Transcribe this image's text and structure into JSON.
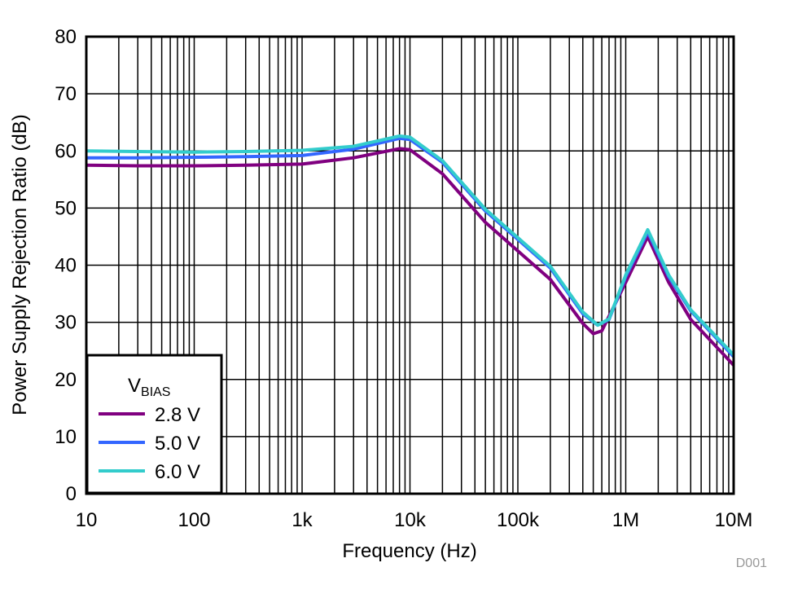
{
  "chart_data": {
    "type": "line",
    "xlabel": "Frequency (Hz)",
    "ylabel": "Power Supply Rejection Ratio (dB)",
    "xscale": "log",
    "xlim": [
      10,
      10000000
    ],
    "ylim": [
      0,
      80
    ],
    "x_ticks": [
      {
        "v": 10,
        "label": "10"
      },
      {
        "v": 100,
        "label": "100"
      },
      {
        "v": 1000,
        "label": "1k"
      },
      {
        "v": 10000,
        "label": "10k"
      },
      {
        "v": 100000,
        "label": "100k"
      },
      {
        "v": 1000000,
        "label": "1M"
      },
      {
        "v": 10000000,
        "label": "10M"
      }
    ],
    "y_ticks": [
      0,
      10,
      20,
      30,
      40,
      50,
      60,
      70,
      80
    ],
    "grid": true,
    "legend": {
      "title_main": "V",
      "title_sub": "BIAS",
      "placement": "bottom-left"
    },
    "watermark": "D001",
    "series": [
      {
        "name": "2.8 V",
        "color": "#800080",
        "x": [
          10,
          30,
          100,
          300,
          1000,
          3000,
          8000,
          10000,
          20000,
          50000,
          100000,
          200000,
          400000,
          500000,
          600000,
          1000000,
          1600000,
          2500000,
          4000000,
          10000000
        ],
        "y": [
          57.5,
          57.4,
          57.4,
          57.5,
          57.7,
          58.8,
          60.4,
          60.2,
          56,
          47.5,
          42.5,
          37.5,
          29.8,
          28,
          28.5,
          37,
          45,
          37,
          30.5,
          22.5
        ]
      },
      {
        "name": "5.0 V",
        "color": "#3366ff",
        "x": [
          10,
          30,
          100,
          300,
          1000,
          3000,
          8000,
          10000,
          20000,
          50000,
          100000,
          200000,
          400000,
          550000,
          700000,
          1000000,
          1600000,
          2500000,
          4000000,
          10000000
        ],
        "y": [
          58.8,
          58.8,
          58.9,
          59,
          59.2,
          60.3,
          62.2,
          62,
          58,
          49.5,
          44.5,
          39.5,
          31.5,
          29.5,
          30.5,
          38,
          45.8,
          38,
          32,
          24
        ]
      },
      {
        "name": "6.0 V",
        "color": "#33cccc",
        "x": [
          10,
          30,
          100,
          300,
          1000,
          3000,
          8000,
          10000,
          20000,
          50000,
          100000,
          200000,
          400000,
          550000,
          700000,
          1000000,
          1600000,
          2500000,
          4000000,
          10000000
        ],
        "y": [
          60,
          59.9,
          59.8,
          59.9,
          60.1,
          60.8,
          62.6,
          62.4,
          58.3,
          49.8,
          44.8,
          39.8,
          31.8,
          29.5,
          30.6,
          38.3,
          46.2,
          38.3,
          32.2,
          24.3
        ]
      }
    ]
  }
}
